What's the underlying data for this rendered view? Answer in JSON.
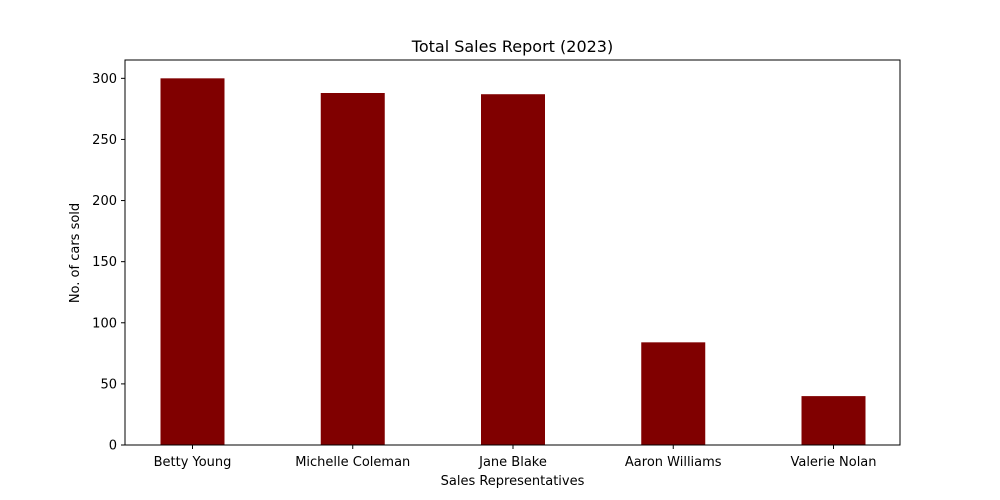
{
  "chart_data": {
    "type": "bar",
    "title": "Total Sales Report (2023)",
    "xlabel": "Sales Representatives",
    "ylabel": "No. of cars sold",
    "categories": [
      "Betty Young",
      "Michelle Coleman",
      "Jane Blake",
      "Aaron Williams",
      "Valerie Nolan"
    ],
    "values": [
      300,
      288,
      287,
      84,
      40
    ],
    "ylim": [
      0,
      315
    ],
    "yticks": [
      "0",
      "50",
      "100",
      "150",
      "200",
      "250",
      "300"
    ],
    "grid": false,
    "bar_color": "#800000"
  }
}
